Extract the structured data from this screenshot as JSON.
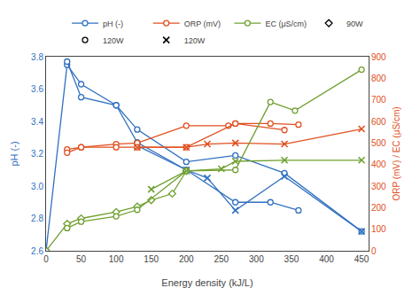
{
  "chart_data": {
    "type": "line",
    "xlabel": "Energy density (kJ/L)",
    "ylabel": "pH (-)",
    "y2label": "ORP (mV) / EC (μS/cm)",
    "xlim": [
      0,
      460
    ],
    "xticks": [
      0,
      50,
      100,
      150,
      200,
      250,
      300,
      350,
      400,
      450
    ],
    "ylim": [
      2.6,
      3.8
    ],
    "yticks": [
      2.6,
      2.8,
      {
        "value": 3.0,
        "label": "3.0"
      },
      3.2,
      3.4,
      3.6,
      3.8
    ],
    "y2lim": [
      0,
      900
    ],
    "y2ticks": [
      0,
      100,
      200,
      300,
      400,
      500,
      600,
      700,
      800,
      900
    ],
    "grid": false,
    "legend": "upper right",
    "legend_entries": [
      {
        "name": "pH (-)",
        "color": "#3070C0",
        "marker": "circle",
        "line_style": "solid"
      },
      {
        "name": "ORP (mV)",
        "color": "#E05020",
        "marker": "circle",
        "line_style": "solid"
      },
      {
        "name": "EC (μS/cm)",
        "color": "#70A030",
        "marker": "circle",
        "line_style": "solid"
      },
      {
        "name": "90W",
        "color": "#000000",
        "marker": "diamond",
        "line_style": "none"
      },
      {
        "name": "120W",
        "color": "#000000",
        "marker": "circle",
        "line_style": "none"
      },
      {
        "name": "120W",
        "color": "#000000",
        "marker": "x",
        "line_style": "none"
      }
    ],
    "series": [
      {
        "axis": "y",
        "color": "#3070C0",
        "marker": "circle",
        "x": [
          0,
          30,
          50,
          100,
          130,
          200,
          270,
          340,
          450
        ],
        "values": [
          2.6,
          3.75,
          3.63,
          3.5,
          3.35,
          3.15,
          3.19,
          3.08,
          2.72
        ]
      },
      {
        "axis": "y",
        "color": "#3070C0",
        "marker": "circle",
        "x": [
          30,
          50,
          100,
          130,
          200,
          270,
          320,
          360
        ],
        "values": [
          3.77,
          3.55,
          3.5,
          3.27,
          3.1,
          2.9,
          2.9,
          2.85
        ]
      },
      {
        "axis": "y",
        "color": "#3070C0",
        "marker": "x",
        "x": [
          130,
          200,
          230,
          270,
          340,
          450
        ],
        "values": [
          3.25,
          3.1,
          3.05,
          2.85,
          3.06,
          2.72
        ]
      },
      {
        "axis": "y2",
        "color": "#E05020",
        "marker": "circle",
        "x": [
          30,
          50,
          100,
          130,
          200,
          260,
          270,
          340
        ],
        "values": [
          470,
          480,
          495,
          500,
          580,
          580,
          590,
          560
        ]
      },
      {
        "axis": "y2",
        "color": "#E05020",
        "marker": "circle",
        "x": [
          30,
          50,
          100,
          130,
          200,
          270,
          320,
          360
        ],
        "values": [
          455,
          480,
          480,
          480,
          480,
          590,
          590,
          585
        ]
      },
      {
        "axis": "y2",
        "color": "#E05020",
        "marker": "x",
        "x": [
          130,
          200,
          230,
          270,
          340,
          450
        ],
        "values": [
          480,
          480,
          495,
          500,
          495,
          565
        ]
      },
      {
        "axis": "y2",
        "color": "#70A030",
        "marker": "diamond",
        "x": [
          0,
          30,
          50,
          100,
          130,
          150,
          180,
          200
        ],
        "values": [
          0,
          125,
          150,
          180,
          205,
          235,
          265,
          370
        ]
      },
      {
        "axis": "y2",
        "color": "#70A030",
        "marker": "circle",
        "x": [
          30,
          50,
          100,
          130,
          200,
          270,
          320,
          355,
          450
        ],
        "values": [
          105,
          135,
          160,
          190,
          370,
          375,
          690,
          650,
          840
        ]
      },
      {
        "axis": "y2",
        "color": "#70A030",
        "marker": "x",
        "x": [
          150,
          200,
          250,
          270,
          340,
          450
        ],
        "values": [
          285,
          370,
          380,
          415,
          420,
          420
        ]
      },
      {
        "axis": "y",
        "type": "scatter",
        "color": "#000000",
        "marker": "dot",
        "x": [
          0
        ],
        "values": [
          2.6
        ]
      }
    ]
  }
}
